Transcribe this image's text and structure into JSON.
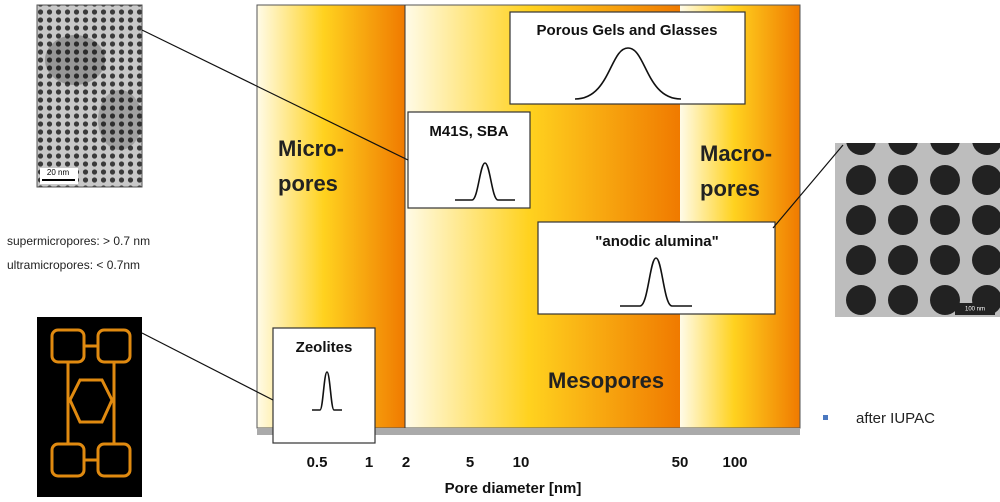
{
  "regions": {
    "micro": [
      "Micro-",
      "pores"
    ],
    "meso": "Mesopores",
    "macro": [
      "Macro-",
      "pores"
    ]
  },
  "boxes": [
    "Porous Gels and Glasses",
    "M41S, SBA",
    "\"anodic alumina\"",
    "Zeolites"
  ],
  "axis": {
    "ticks": [
      0.5,
      1,
      2,
      5,
      10,
      50,
      100
    ],
    "title": "Pore diameter [nm]"
  },
  "notes": [
    "supermicropores: > 0.7 nm",
    "ultramicropores: < 0.7nm"
  ],
  "images": {
    "tem_scale": "20 nm",
    "sem_scale": "100 nm"
  },
  "footnote": "after IUPAC"
}
